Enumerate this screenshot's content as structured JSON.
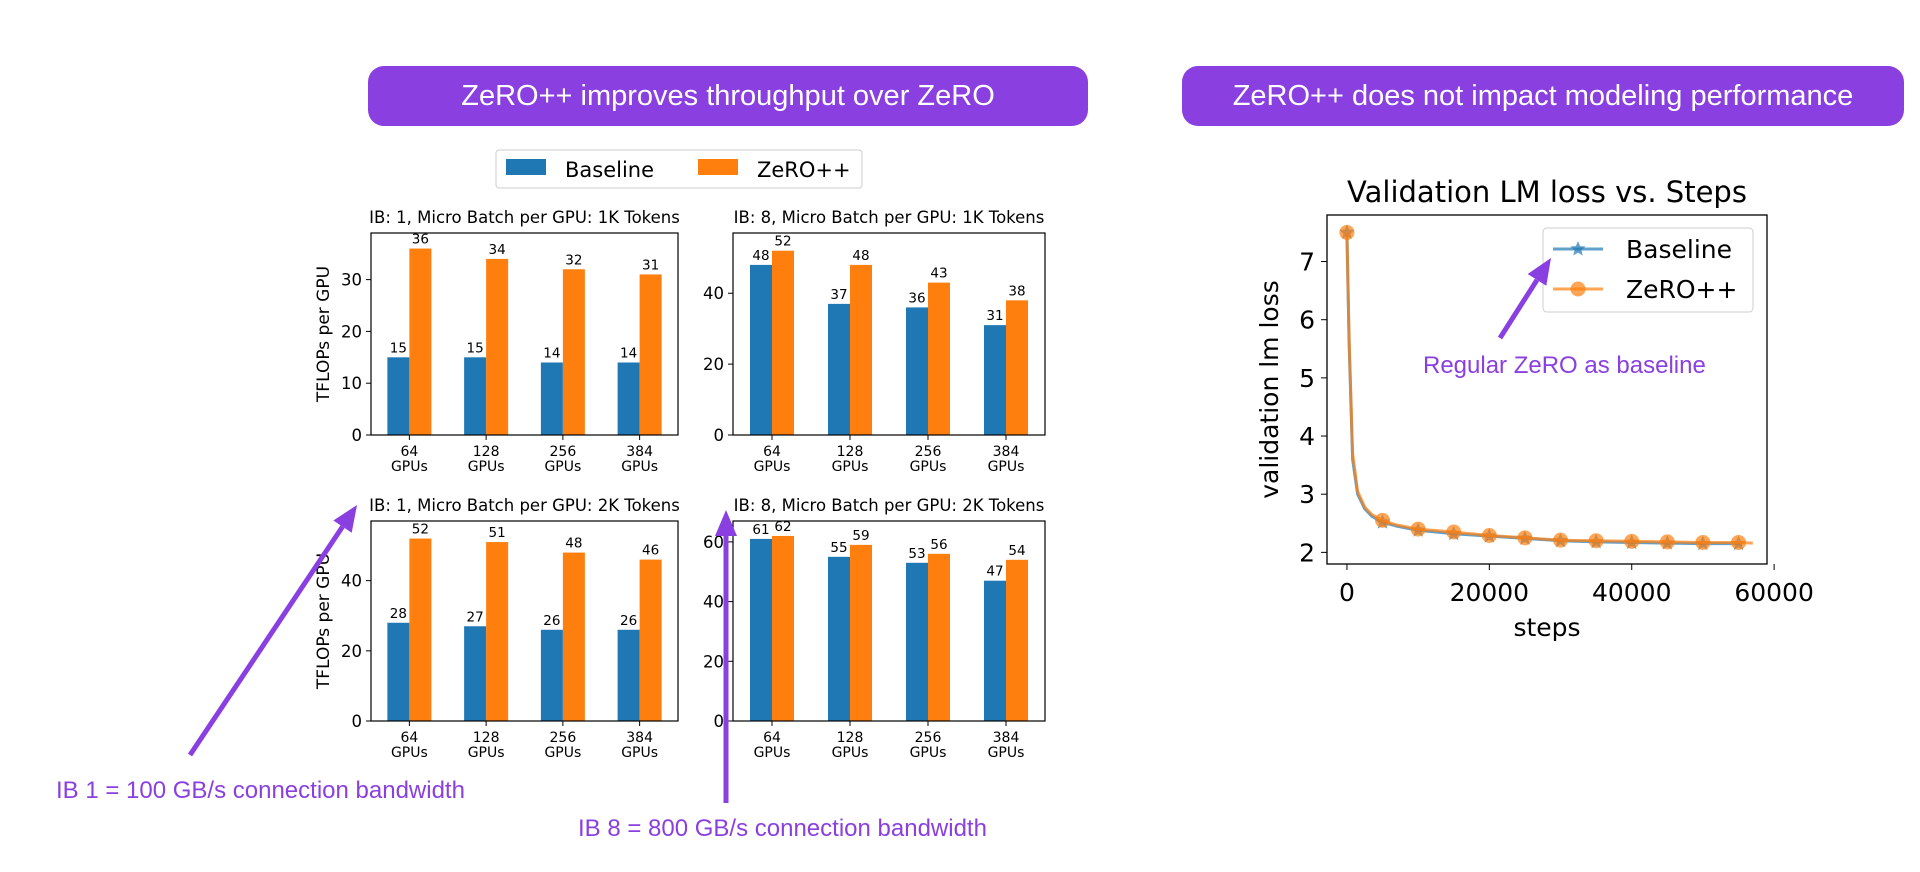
{
  "banners": {
    "left": "ZeRO++ improves throughput over ZeRO",
    "right": "ZeRO++ does not impact modeling performance"
  },
  "annotations": {
    "ib1": "IB 1 = 100 GB/s connection bandwidth",
    "ib8": "IB 8 = 800 GB/s connection bandwidth",
    "baseline_note": "Regular ZeRO as baseline"
  },
  "colors": {
    "baseline": "#1f77b4",
    "zeropp": "#ff7f0e",
    "banner": "#8a3fe0",
    "annotation": "#8a3fe0"
  },
  "legend": [
    "Baseline",
    "ZeRO++"
  ],
  "chart_data": [
    {
      "type": "bar",
      "title": "IB: 1, Micro Batch per GPU: 1K Tokens",
      "ylabel": "TFLOPs per GPU",
      "categories": [
        "64\nGPUs",
        "128\nGPUs",
        "256\nGPUs",
        "384\nGPUs"
      ],
      "ylim": [
        0,
        39
      ],
      "yticks": [
        0,
        10,
        20,
        30
      ],
      "series": [
        {
          "name": "Baseline",
          "values": [
            15,
            15,
            14,
            14
          ]
        },
        {
          "name": "ZeRO++",
          "values": [
            36,
            34,
            32,
            31
          ]
        }
      ]
    },
    {
      "type": "bar",
      "title": "IB: 8, Micro Batch per GPU: 1K Tokens",
      "ylabel": "",
      "categories": [
        "64\nGPUs",
        "128\nGPUs",
        "256\nGPUs",
        "384\nGPUs"
      ],
      "ylim": [
        0,
        57
      ],
      "yticks": [
        0,
        20,
        40
      ],
      "series": [
        {
          "name": "Baseline",
          "values": [
            48,
            37,
            36,
            31
          ]
        },
        {
          "name": "ZeRO++",
          "values": [
            52,
            48,
            43,
            38
          ]
        }
      ]
    },
    {
      "type": "bar",
      "title": "IB: 1, Micro Batch per GPU: 2K Tokens",
      "ylabel": "TFLOPs per GPU",
      "categories": [
        "64\nGPUs",
        "128\nGPUs",
        "256\nGPUs",
        "384\nGPUs"
      ],
      "ylim": [
        0,
        57
      ],
      "yticks": [
        0,
        20,
        40
      ],
      "series": [
        {
          "name": "Baseline",
          "values": [
            28,
            27,
            26,
            26
          ]
        },
        {
          "name": "ZeRO++",
          "values": [
            52,
            51,
            48,
            46
          ]
        }
      ]
    },
    {
      "type": "bar",
      "title": "IB: 8, Micro Batch per GPU: 2K Tokens",
      "ylabel": "",
      "categories": [
        "64\nGPUs",
        "128\nGPUs",
        "256\nGPUs",
        "384\nGPUs"
      ],
      "ylim": [
        0,
        67
      ],
      "yticks": [
        0,
        20,
        40,
        60
      ],
      "series": [
        {
          "name": "Baseline",
          "values": [
            61,
            55,
            53,
            47
          ]
        },
        {
          "name": "ZeRO++",
          "values": [
            62,
            59,
            56,
            54
          ]
        }
      ]
    },
    {
      "type": "line",
      "title": "Validation LM loss vs. Steps",
      "xlabel": "steps",
      "ylabel": "validation lm loss",
      "xlim": [
        -2800,
        59000
      ],
      "ylim": [
        1.8,
        7.8
      ],
      "xticks": [
        0,
        20000,
        40000,
        60000
      ],
      "yticks": [
        2,
        3,
        4,
        5,
        6,
        7
      ],
      "grid": false,
      "legend_position": "top-right",
      "series": [
        {
          "name": "Baseline",
          "marker": "star",
          "x": [
            0,
            300,
            800,
            1500,
            2500,
            3500,
            5000,
            7000,
            10000,
            15000,
            20000,
            25000,
            30000,
            35000,
            40000,
            45000,
            50000,
            55000,
            55500
          ],
          "y": [
            7.5,
            5.6,
            3.6,
            3.0,
            2.75,
            2.62,
            2.52,
            2.45,
            2.38,
            2.32,
            2.28,
            2.24,
            2.2,
            2.18,
            2.17,
            2.16,
            2.15,
            2.15,
            2.15
          ],
          "marker_x": [
            0,
            5000,
            10000,
            15000,
            20000,
            25000,
            30000,
            35000,
            40000,
            45000,
            50000,
            55000
          ]
        },
        {
          "name": "ZeRO++",
          "marker": "circle",
          "x": [
            0,
            300,
            800,
            1500,
            2500,
            3500,
            5000,
            7000,
            10000,
            15000,
            20000,
            25000,
            30000,
            35000,
            40000,
            45000,
            50000,
            55000,
            57000
          ],
          "y": [
            7.5,
            5.7,
            3.7,
            3.05,
            2.78,
            2.65,
            2.55,
            2.47,
            2.4,
            2.35,
            2.29,
            2.25,
            2.21,
            2.2,
            2.19,
            2.18,
            2.17,
            2.17,
            2.16
          ],
          "marker_x": [
            0,
            5000,
            10000,
            15000,
            20000,
            25000,
            30000,
            35000,
            40000,
            45000,
            50000,
            55000
          ]
        }
      ]
    }
  ]
}
